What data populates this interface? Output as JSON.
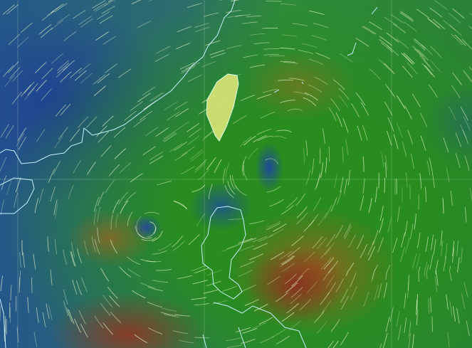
{
  "map": {
    "region": "",
    "colors": {
      "calm": "#24578a",
      "moderate": "#2f8a3a",
      "strong": "#aa5a1e",
      "very_strong": "#8c281e",
      "coastline": "#c8f0ff",
      "streamline": "#e6f5c8"
    },
    "vortices": [
      {
        "label": "",
        "center_lat_lon": null
      },
      {
        "label": "",
        "center_lat_lon": null
      }
    ]
  }
}
